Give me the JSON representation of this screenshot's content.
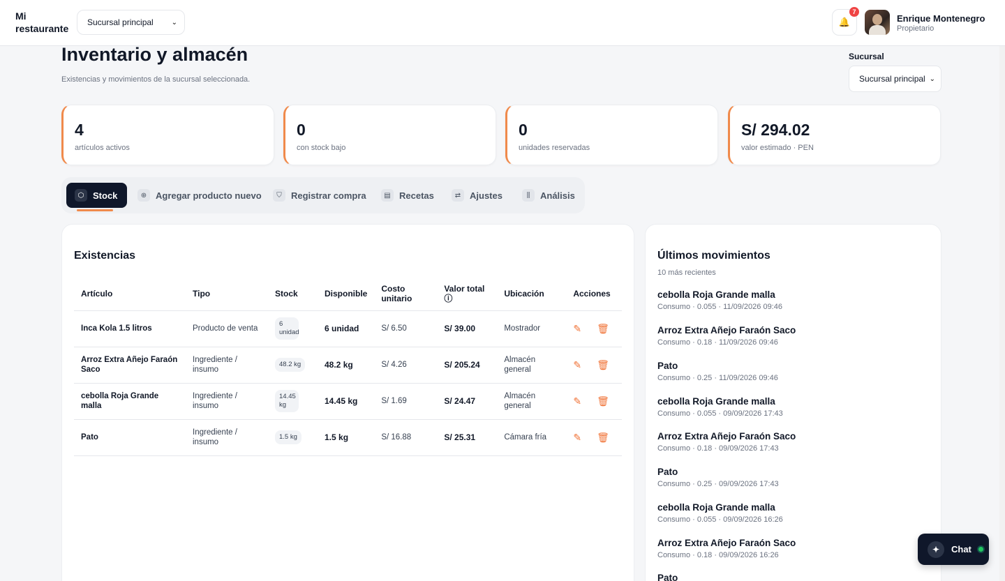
{
  "app": {
    "brand": "Mi restaurante",
    "branch_selected": "Sucursal principal"
  },
  "notifications": {
    "count": "7"
  },
  "user": {
    "name": "Enrique Montenegro",
    "role": "Propietario"
  },
  "page": {
    "title": "Inventario y almacén",
    "subtitle": "Existencias y movimientos de la sucursal seleccionada.",
    "branch_label": "Sucursal",
    "branch_value": "Sucursal principal"
  },
  "kpis": [
    {
      "value": "4",
      "label": "artículos activos"
    },
    {
      "value": "0",
      "label": "con stock bajo"
    },
    {
      "value": "0",
      "label": "unidades reservadas"
    },
    {
      "value": "S/ 294.02",
      "label": "valor estimado · PEN"
    }
  ],
  "tabs": [
    {
      "label": "Stock",
      "icon": "box-icon"
    },
    {
      "label": "Agregar producto nuevo",
      "icon": "plus-circle-icon"
    },
    {
      "label": "Registrar compra",
      "icon": "cart-icon"
    },
    {
      "label": "Recetas",
      "icon": "document-icon"
    },
    {
      "label": "Ajustes",
      "icon": "swap-icon"
    },
    {
      "label": "Análisis",
      "icon": "chart-icon"
    }
  ],
  "stock": {
    "title": "Existencias",
    "columns": [
      "Artículo",
      "Tipo",
      "Stock",
      "Disponible",
      "Costo unitario",
      "Valor total",
      "Ubicación",
      "Acciones"
    ],
    "rows": [
      {
        "name": "Inca Kola 1.5 litros",
        "type": "Producto de venta",
        "stock": "6 unidad",
        "available": "6 unidad",
        "unit_cost": "S/ 6.50",
        "total": "S/ 39.00",
        "location": "Mostrador"
      },
      {
        "name": "Arroz Extra Añejo Faraón Saco",
        "type": "Ingrediente / insumo",
        "stock": "48.2 kg",
        "available": "48.2 kg",
        "unit_cost": "S/ 4.26",
        "total": "S/ 205.24",
        "location": "Almacén general"
      },
      {
        "name": "cebolla Roja Grande malla",
        "type": "Ingrediente / insumo",
        "stock": "14.45 kg",
        "available": "14.45 kg",
        "unit_cost": "S/ 1.69",
        "total": "S/ 24.47",
        "location": "Almacén general"
      },
      {
        "name": "Pato",
        "type": "Ingrediente / insumo",
        "stock": "1.5 kg",
        "available": "1.5 kg",
        "unit_cost": "S/ 16.88",
        "total": "S/ 25.31",
        "location": "Cámara fría"
      }
    ]
  },
  "movements": {
    "title": "Últimos movimientos",
    "subtitle": "10 más recientes",
    "items": [
      {
        "name": "cebolla Roja Grande malla",
        "meta": "Consumo · 0.055 · 11/09/2026 09:46"
      },
      {
        "name": "Arroz Extra Añejo Faraón Saco",
        "meta": "Consumo · 0.18 · 11/09/2026 09:46"
      },
      {
        "name": "Pato",
        "meta": "Consumo · 0.25 · 11/09/2026 09:46"
      },
      {
        "name": "cebolla Roja Grande malla",
        "meta": "Consumo · 0.055 · 09/09/2026 17:43"
      },
      {
        "name": "Arroz Extra Añejo Faraón Saco",
        "meta": "Consumo · 0.18 · 09/09/2026 17:43"
      },
      {
        "name": "Pato",
        "meta": "Consumo · 0.25 · 09/09/2026 17:43"
      },
      {
        "name": "cebolla Roja Grande malla",
        "meta": "Consumo · 0.055 · 09/09/2026 16:26"
      },
      {
        "name": "Arroz Extra Añejo Faraón Saco",
        "meta": "Consumo · 0.18 · 09/09/2026 16:26"
      },
      {
        "name": "Pato",
        "meta": ""
      }
    ]
  },
  "chat": {
    "label": "Chat"
  },
  "colors": {
    "accent": "#f08a4b",
    "dark": "#0f172a",
    "danger": "#ef4444"
  }
}
